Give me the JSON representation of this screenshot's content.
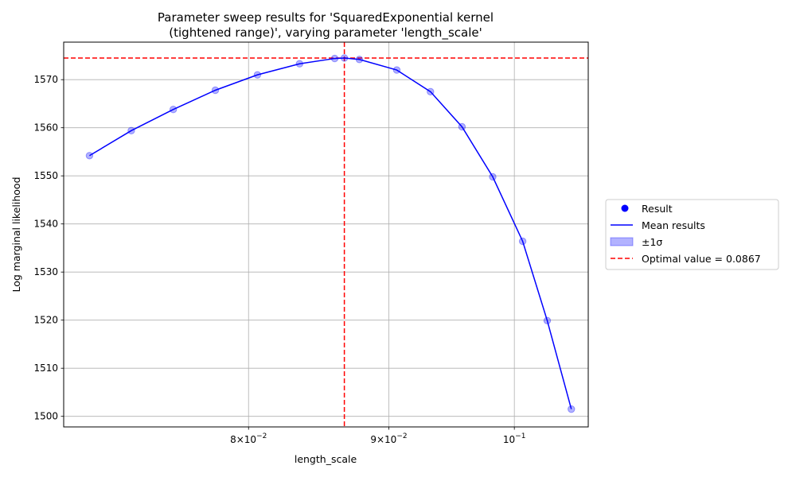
{
  "chart_data": {
    "type": "scatter",
    "title_lines": [
      "Parameter sweep results for 'SquaredExponential kernel",
      "(tightened range)', varying parameter 'length_scale'"
    ],
    "xlabel": "length_scale",
    "ylabel": "Log marginal likelihood",
    "xscale": "log",
    "xlim": [
      0.0685,
      0.1064
    ],
    "ylim": [
      1497.8,
      1577.8
    ],
    "xticks": [
      {
        "value": 0.08,
        "base": "8×10",
        "exp": "−2"
      },
      {
        "value": 0.09,
        "base": "9×10",
        "exp": "−2"
      },
      {
        "value": 0.1,
        "base": "10",
        "exp": "−1"
      }
    ],
    "yticks": [
      1500,
      1510,
      1520,
      1530,
      1540,
      1550,
      1560,
      1570
    ],
    "grid": true,
    "series": [
      {
        "name": "Result",
        "kind": "points",
        "color": "#0000ff",
        "x": [
          0.07,
          0.0725,
          0.0751,
          0.0778,
          0.0806,
          0.0835,
          0.086,
          0.0867,
          0.0878,
          0.0906,
          0.0932,
          0.0957,
          0.0982,
          0.1007,
          0.1028,
          0.1049
        ],
        "y": [
          1554.2,
          1559.4,
          1563.8,
          1567.8,
          1571.0,
          1573.3,
          1574.4,
          1574.5,
          1574.2,
          1572.0,
          1567.5,
          1560.2,
          1549.8,
          1536.4,
          1519.9,
          1501.5
        ]
      },
      {
        "name": "Mean results",
        "kind": "line",
        "color": "#0000ff"
      },
      {
        "name": "±1σ",
        "kind": "band",
        "color": "#0000ff"
      }
    ],
    "reference_lines": [
      {
        "name": "Optimal value = 0.0867",
        "axis": "x",
        "value": 0.0867,
        "color": "#ff0000"
      },
      {
        "axis": "y",
        "value": 1574.5,
        "color": "#ff0000"
      }
    ],
    "legend": {
      "placement": "center-right-outside",
      "entries": [
        "Result",
        "Mean results",
        "±1σ",
        "Optimal value = 0.0867"
      ]
    }
  }
}
